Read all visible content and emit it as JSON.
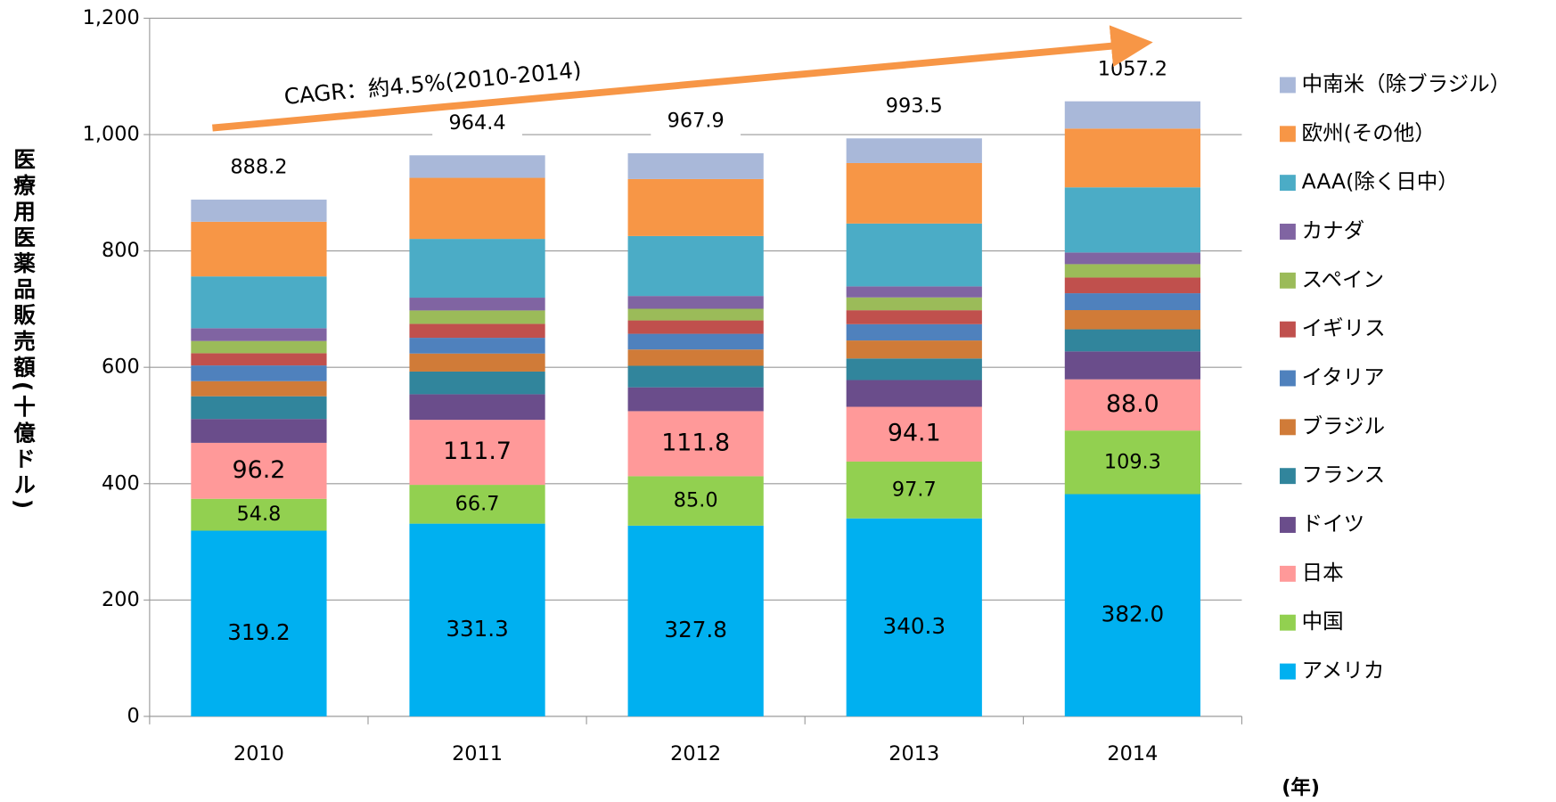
{
  "chart_data": {
    "type": "stacked_bar",
    "y_label": "医療用医薬品販売額(十億ドル)",
    "x_label": "(年)",
    "annotation": "CAGR：約4.5%(2010-2014)",
    "categories": [
      "2010",
      "2011",
      "2012",
      "2013",
      "2014"
    ],
    "totals": [
      888.2,
      964.4,
      967.9,
      993.5,
      1057.2
    ],
    "ylim": [
      0,
      1200
    ],
    "yticks": [
      0,
      200,
      400,
      600,
      800,
      {
        "value": 1000,
        "label": "1,000"
      },
      {
        "value": 1200,
        "label": "1,200"
      }
    ],
    "grid": true,
    "series": [
      {
        "name": "アメリカ",
        "color": "#00b0f0",
        "values": [
          319.2,
          331.3,
          327.8,
          340.3,
          382.0
        ],
        "value_labels": [
          "319.2",
          "331.3",
          "327.8",
          "340.3",
          "382.0"
        ]
      },
      {
        "name": "中国",
        "color": "#92d050",
        "values": [
          54.8,
          66.7,
          85.0,
          97.7,
          109.3
        ],
        "value_labels": [
          "54.8",
          "66.7",
          "85.0",
          "97.7",
          "109.3"
        ]
      },
      {
        "name": "日本",
        "color": "#ff9999",
        "values": [
          96.2,
          111.7,
          111.8,
          94.1,
          88.0
        ],
        "value_labels": [
          "96.2",
          "111.7",
          "111.8",
          "94.1",
          "88.0"
        ]
      },
      {
        "name": "ドイツ",
        "color": "#6a4d8b",
        "values": [
          41,
          44,
          41,
          46,
          48
        ]
      },
      {
        "name": "フランス",
        "color": "#31859c",
        "values": [
          39,
          39,
          37,
          37,
          38
        ]
      },
      {
        "name": "ブラジル",
        "color": "#d07b38",
        "values": [
          26,
          31,
          28,
          31,
          33
        ]
      },
      {
        "name": "イタリア",
        "color": "#4f81bd",
        "values": [
          27,
          27,
          27,
          28,
          29
        ]
      },
      {
        "name": "イギリス",
        "color": "#c0504d",
        "values": [
          21,
          24,
          23,
          24,
          27
        ]
      },
      {
        "name": "スペイン",
        "color": "#9bbb59",
        "values": [
          21,
          23,
          20,
          22,
          23
        ]
      },
      {
        "name": "カナダ",
        "color": "#8064a2",
        "values": [
          22,
          22,
          22,
          19,
          20
        ]
      },
      {
        "name": "AAA(除く日中）",
        "color": "#4bacc6",
        "values": [
          89,
          101,
          103,
          108,
          112
        ]
      },
      {
        "name": "欧州(その他）",
        "color": "#f79646",
        "values": [
          94,
          105,
          98,
          104,
          101
        ]
      },
      {
        "name": "中南米（除ブラジル）",
        "color": "#a9b8d9",
        "values": [
          38,
          38.7,
          44.3,
          42.4,
          46.9
        ]
      }
    ]
  }
}
